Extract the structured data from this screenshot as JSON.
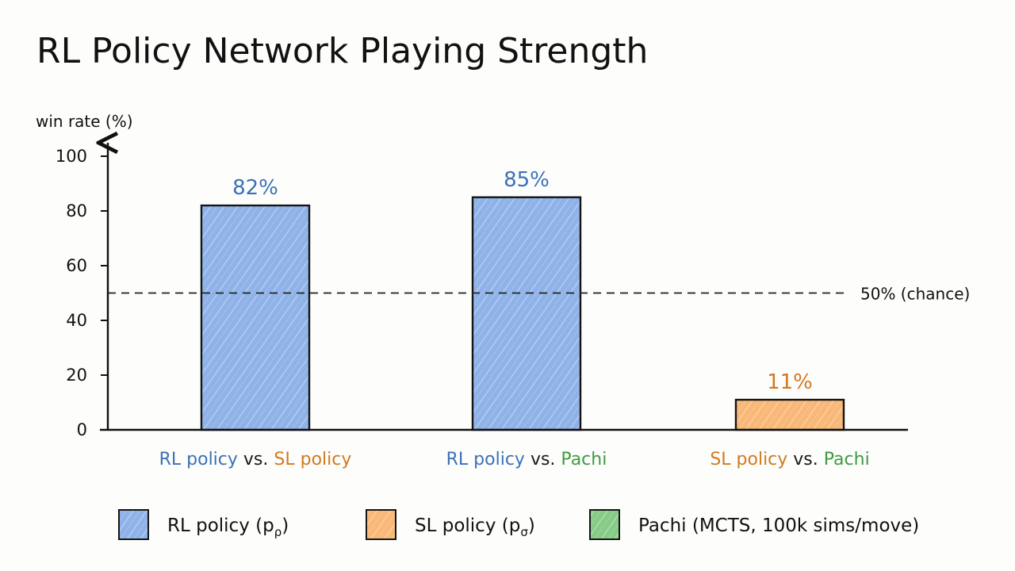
{
  "chart_data": {
    "type": "bar",
    "title": "RL Policy Network Playing Strength",
    "ylabel": "win rate (%)",
    "ylim": [
      0,
      100
    ],
    "yticks": [
      0,
      20,
      40,
      60,
      80,
      100
    ],
    "categories": [
      {
        "parts": [
          {
            "text": "RL policy",
            "role": "rl"
          },
          {
            "text": " vs. ",
            "role": "plain"
          },
          {
            "text": "SL policy",
            "role": "sl"
          }
        ]
      },
      {
        "parts": [
          {
            "text": "RL policy",
            "role": "rl"
          },
          {
            "text": " vs. ",
            "role": "plain"
          },
          {
            "text": "Pachi",
            "role": "pachi"
          }
        ]
      },
      {
        "parts": [
          {
            "text": "SL policy",
            "role": "sl"
          },
          {
            "text": " vs. ",
            "role": "plain"
          },
          {
            "text": "Pachi",
            "role": "pachi"
          }
        ]
      }
    ],
    "values": [
      82,
      85,
      11
    ],
    "data_labels": [
      "82%",
      "85%",
      "11%"
    ],
    "bar_roles": [
      "rl",
      "rl",
      "sl"
    ],
    "reference_line": {
      "y": 50,
      "label": "50% (chance)",
      "style": "dashed"
    },
    "legend": [
      {
        "label": "RL policy (p",
        "sub": "ρ",
        "close": ")",
        "role": "rl"
      },
      {
        "label": "SL policy (p",
        "sub": "σ",
        "close": ")",
        "role": "sl"
      },
      {
        "label": "Pachi (MCTS, 100k sims/move)",
        "sub": "",
        "close": "",
        "role": "pachi"
      }
    ],
    "legend_position": "bottom",
    "grid": false
  },
  "colors": {
    "rl_fill": "#8fb3e8",
    "rl_text": "#3a72b8",
    "sl_fill": "#f9b877",
    "sl_text": "#d27a1e",
    "pachi_fill": "#86cc86",
    "pachi_text": "#3f9a3f",
    "plain_text": "#1a1a1a"
  }
}
